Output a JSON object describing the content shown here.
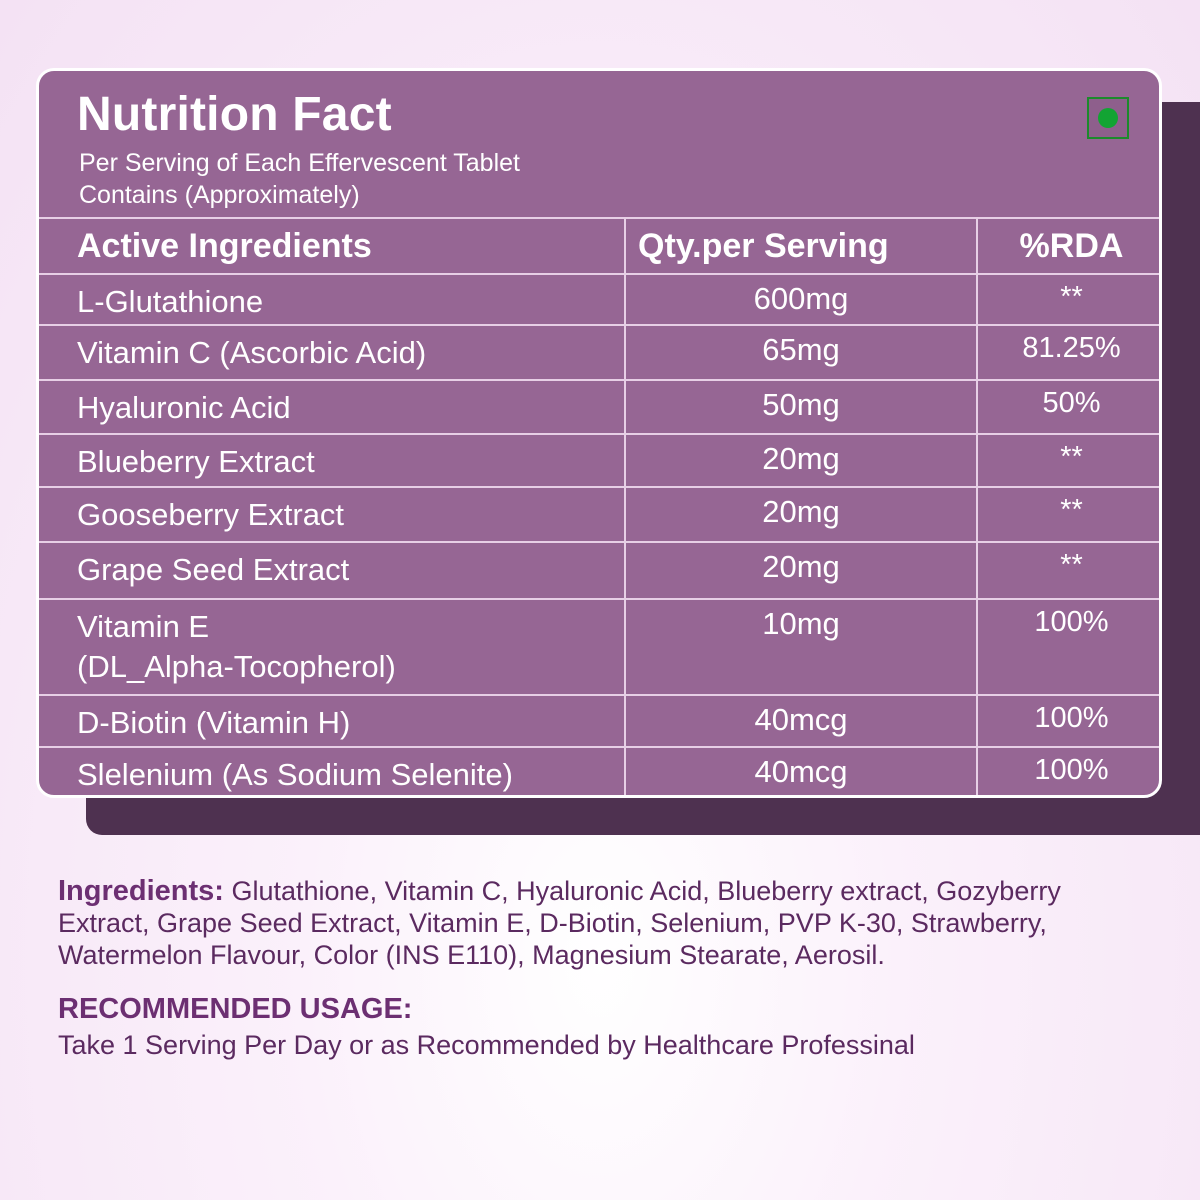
{
  "card": {
    "title": "Nutrition Fact",
    "subtitle": "Per Serving of Each Effervescent Tablet Contains (Approximately)",
    "veg_icon": "veg-symbol-icon"
  },
  "table": {
    "headers": [
      "Active Ingredients",
      "Qty.per Serving",
      "%RDA"
    ],
    "rows": [
      {
        "name": "L-Glutathione",
        "qty": "600mg",
        "rda": "**"
      },
      {
        "name": "Vitamin C (Ascorbic Acid)",
        "qty": "65mg",
        "rda": "81.25%"
      },
      {
        "name": "Hyaluronic Acid",
        "qty": "50mg",
        "rda": "50%"
      },
      {
        "name": "Blueberry Extract",
        "qty": "20mg",
        "rda": "**"
      },
      {
        "name": "Gooseberry Extract",
        "qty": "20mg",
        "rda": "**"
      },
      {
        "name": "Grape Seed Extract",
        "qty": "20mg",
        "rda": "**"
      },
      {
        "name": "Vitamin E",
        "name2": "(DL_Alpha-Tocopherol)",
        "qty": "10mg",
        "rda": "100%"
      },
      {
        "name": "D-Biotin (Vitamin H)",
        "qty": "40mcg",
        "rda": "100%"
      },
      {
        "name": "Slelenium (As Sodium Selenite)",
        "qty": "40mcg",
        "rda": "100%"
      }
    ]
  },
  "ingredients": {
    "label": "Ingredients:",
    "text": " Glutathione, Vitamin C, Hyaluronic Acid, Blueberry extract, Gozyberry Extract, Grape Seed Extract, Vitamin E, D-Biotin, Selenium, PVP K-30, Strawberry, Watermelon Flavour, Color (INS E110), Magnesium Stearate, Aerosil."
  },
  "usage": {
    "title": "RECOMMENDED USAGE:",
    "text": "Take 1 Serving Per Day or as Recommended by Healthcare Professinal"
  },
  "colors": {
    "card": "#966694",
    "shadow": "#4e3150",
    "footer_text": "#5b2a60",
    "veg_green": "#12a433"
  }
}
